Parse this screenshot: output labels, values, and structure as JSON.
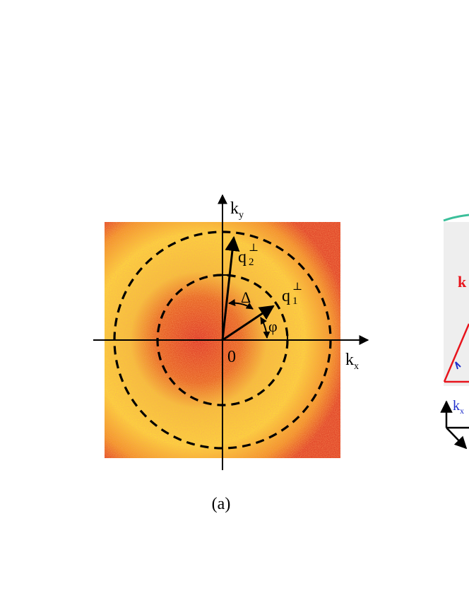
{
  "panel_a": {
    "caption": "(a)",
    "axis_x_label": "k",
    "axis_x_sub": "x",
    "axis_y_label": "k",
    "axis_y_sub": "y",
    "origin_label": "0",
    "vector_1_label": "q",
    "vector_1_sub": "1",
    "vector_1_sup": "⊥",
    "vector_2_label": "q",
    "vector_2_sub": "2",
    "vector_2_sup": "⊥",
    "angle_delta_label": "Δ",
    "angle_phi_label": "φ"
  },
  "panel_b_partial": {
    "k_label_red": "k",
    "k_label_blue": "k",
    "k_label_blue_sub": "x"
  },
  "colors": {
    "heatmap_high": "#fdf23a",
    "heatmap_mid": "#f59a1c",
    "heatmap_low": "#d8262a",
    "heatmap_accent": "#c0138a",
    "red": "#e8141c",
    "blue": "#1f2fcc",
    "teal": "#3bbf9a"
  }
}
